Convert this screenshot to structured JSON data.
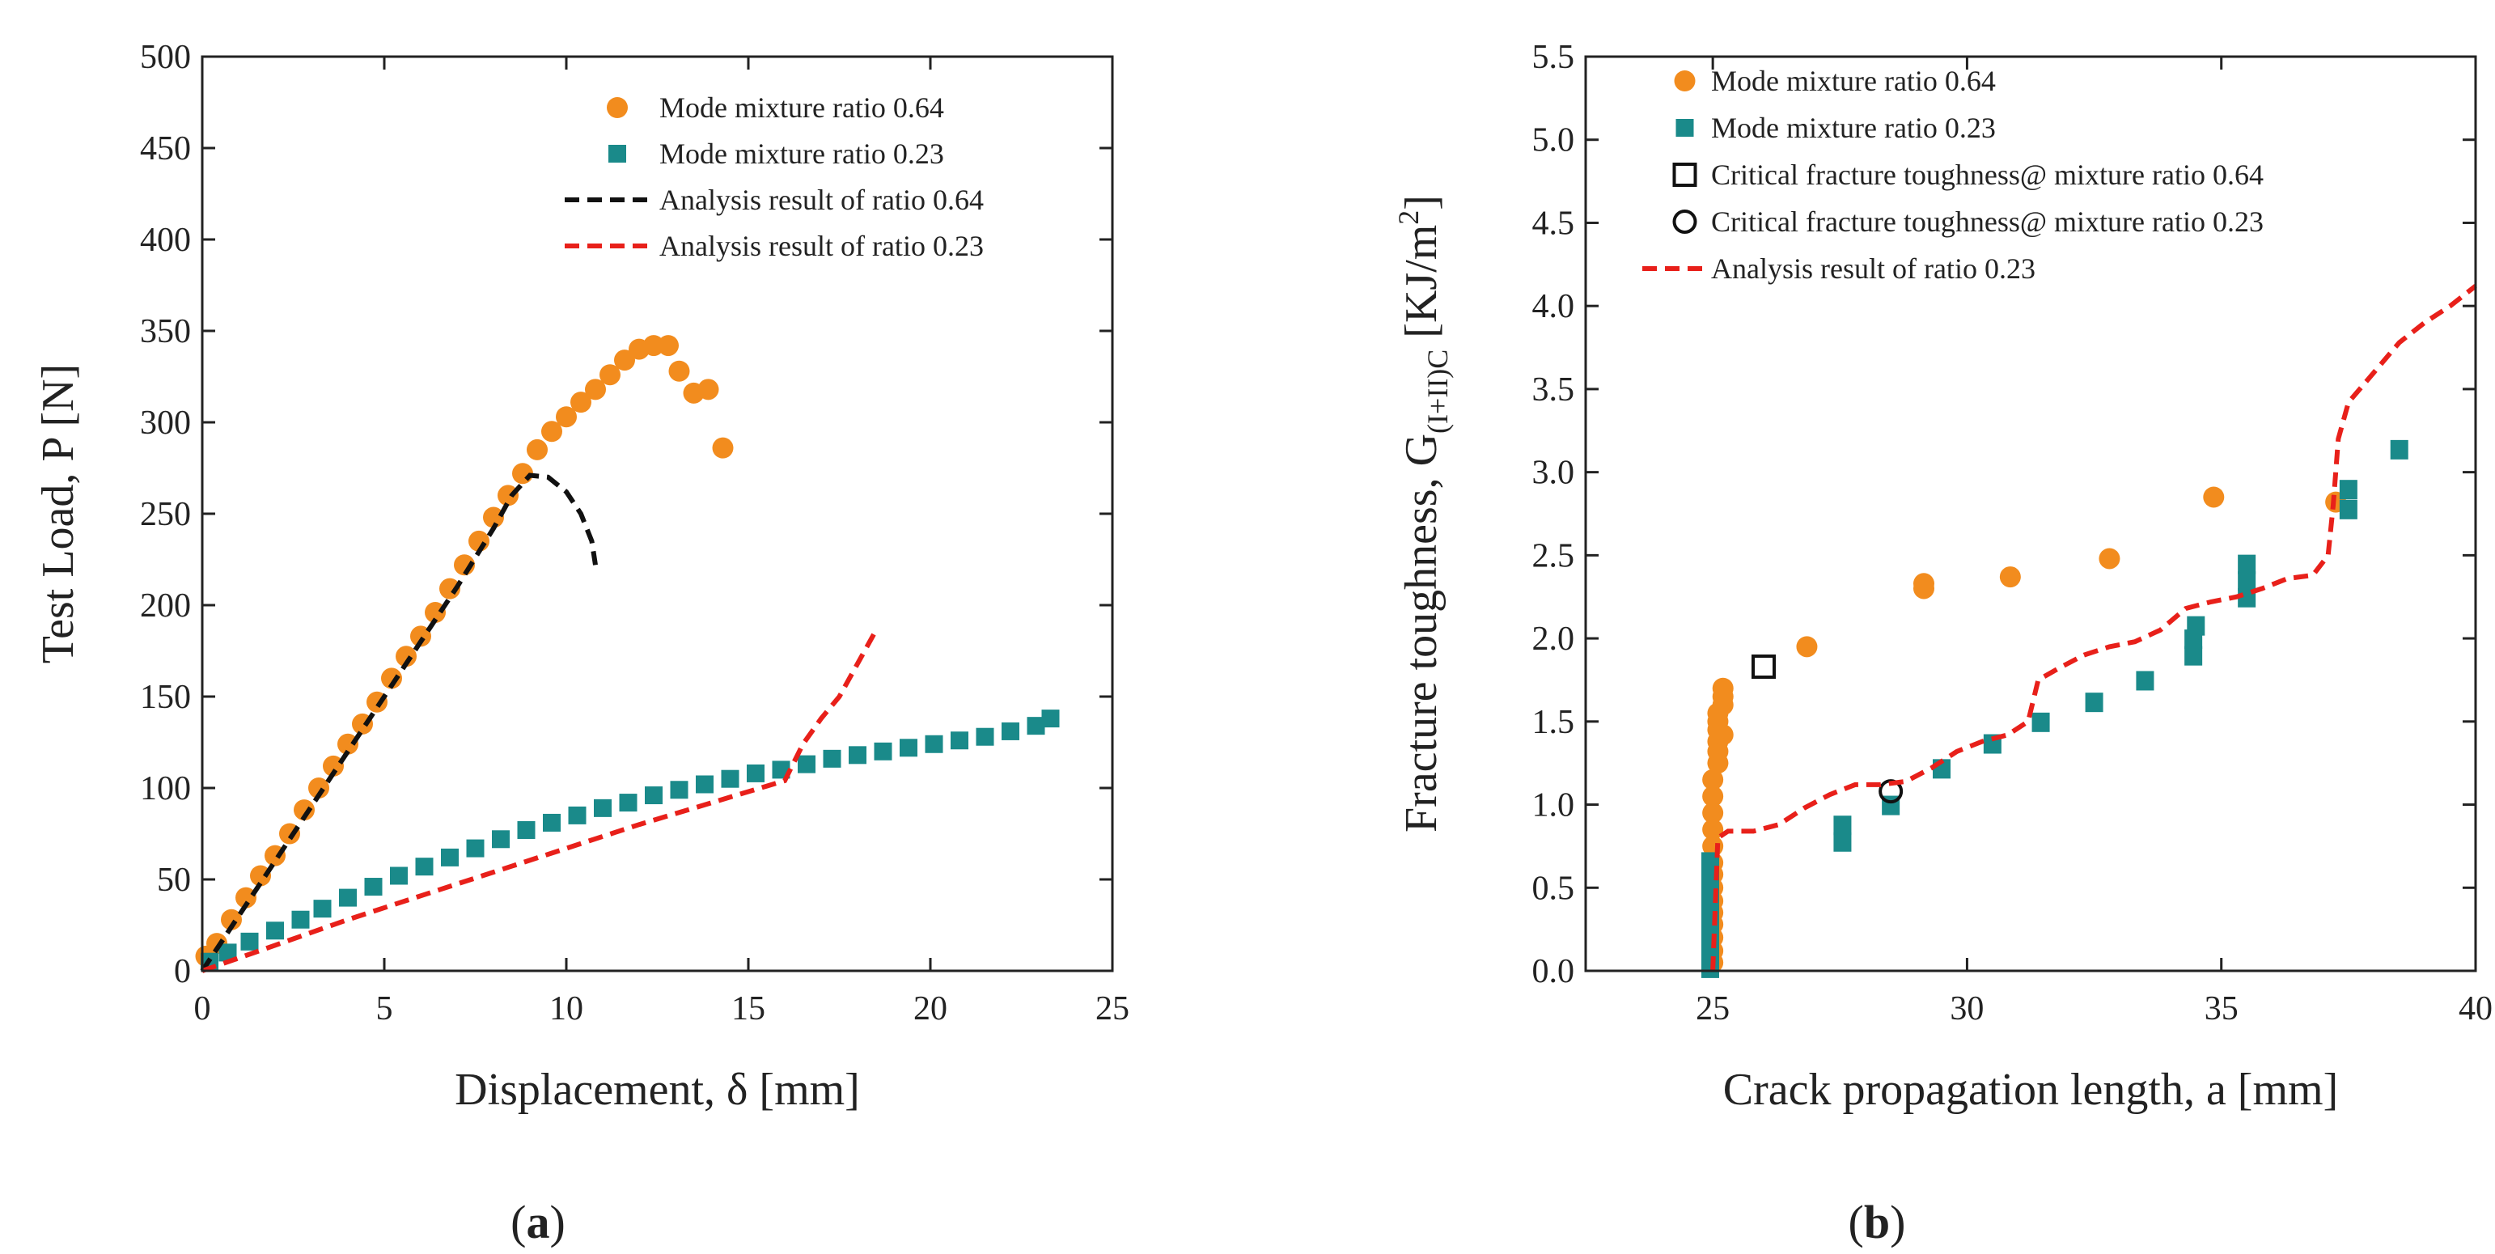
{
  "figure": {
    "panel_a_label": [
      "(",
      "a",
      ")"
    ],
    "panel_b_label": [
      "(",
      "b",
      ")"
    ]
  },
  "colors": {
    "orange": "#F28C1E",
    "teal": "#1A8A8A",
    "black": "#111111",
    "red": "#E8201A"
  },
  "chart_data": [
    {
      "id": "a",
      "type": "scatter",
      "title": "",
      "xlabel": "Displacement, δ [mm]",
      "ylabel": "Test Load, P [N]",
      "xlim": [
        0,
        25
      ],
      "ylim": [
        0,
        500
      ],
      "xticks": [
        0,
        5,
        10,
        15,
        20,
        25
      ],
      "yticks": [
        0,
        50,
        100,
        150,
        200,
        250,
        300,
        350,
        400,
        450,
        500
      ],
      "legend_position": "top-right",
      "series": [
        {
          "name": "Mode mixture ratio 0.64",
          "marker": "circle",
          "color": "#F28C1E",
          "x": [
            0.1,
            0.4,
            0.8,
            1.2,
            1.6,
            2.0,
            2.4,
            2.8,
            3.2,
            3.6,
            4.0,
            4.4,
            4.8,
            5.2,
            5.6,
            6.0,
            6.4,
            6.8,
            7.2,
            7.6,
            8.0,
            8.4,
            8.8,
            9.2,
            9.6,
            10.0,
            10.4,
            10.8,
            11.2,
            11.6,
            12.0,
            12.4,
            12.8,
            13.1,
            13.5,
            13.9,
            14.3
          ],
          "y": [
            8,
            15,
            28,
            40,
            52,
            63,
            75,
            88,
            100,
            112,
            124,
            135,
            147,
            160,
            172,
            183,
            196,
            209,
            222,
            235,
            248,
            260,
            272,
            285,
            295,
            303,
            311,
            318,
            326,
            334,
            340,
            342,
            342,
            328,
            316,
            318,
            286
          ]
        },
        {
          "name": "Mode mixture ratio 0.23",
          "marker": "square",
          "color": "#1A8A8A",
          "x": [
            0.2,
            0.7,
            1.3,
            2.0,
            2.7,
            3.3,
            4.0,
            4.7,
            5.4,
            6.1,
            6.8,
            7.5,
            8.2,
            8.9,
            9.6,
            10.3,
            11.0,
            11.7,
            12.4,
            13.1,
            13.8,
            14.5,
            15.2,
            15.9,
            16.6,
            17.3,
            18.0,
            18.7,
            19.4,
            20.1,
            20.8,
            21.5,
            22.2,
            22.9,
            23.3
          ],
          "y": [
            5,
            10,
            16,
            22,
            28,
            34,
            40,
            46,
            52,
            57,
            62,
            67,
            72,
            77,
            81,
            85,
            89,
            92,
            96,
            99,
            102,
            105,
            108,
            110,
            113,
            116,
            118,
            120,
            122,
            124,
            126,
            128,
            131,
            134,
            138
          ]
        },
        {
          "name": "Analysis result of  ratio 0.64",
          "marker": "dashed-line",
          "color": "#111111",
          "x": [
            0,
            1,
            2,
            3,
            4,
            5,
            6,
            7,
            8,
            8.5,
            9.0,
            9.5,
            10.0,
            10.4,
            10.7,
            10.8
          ],
          "y": [
            0,
            30,
            60,
            90,
            120,
            150,
            180,
            210,
            242,
            260,
            271,
            270,
            262,
            250,
            235,
            222
          ]
        },
        {
          "name": "Analysis result of  ratio 0.23",
          "marker": "dashed-line",
          "color": "#E8201A",
          "x": [
            0,
            2,
            4,
            6,
            8,
            10,
            12,
            14,
            15.5,
            16.0,
            16.2,
            16.5,
            17.0,
            17.5,
            18.0,
            18.5
          ],
          "y": [
            0,
            14,
            28,
            41,
            54,
            67,
            80,
            92,
            101,
            104,
            112,
            124,
            138,
            150,
            168,
            186
          ]
        }
      ]
    },
    {
      "id": "b",
      "type": "scatter",
      "title": "",
      "xlabel": "Crack propagation length, a [mm]",
      "ylabel_main": "Fracture toughness, G",
      "ylabel_sub": "(I+II)C",
      "ylabel_unit": " [KJ/m",
      "ylabel_sup": "2",
      "ylabel_close": "]",
      "xlim": [
        22.5,
        40
      ],
      "ylim": [
        0.0,
        5.5
      ],
      "xticks": [
        25,
        30,
        35,
        40
      ],
      "yticks": [
        0.0,
        0.5,
        1.0,
        1.5,
        2.0,
        2.5,
        3.0,
        3.5,
        4.0,
        4.5,
        5.0,
        5.5
      ],
      "legend_position": "top-left",
      "series": [
        {
          "name": " Mode mixture ratio 0.64",
          "marker": "circle",
          "color": "#F28C1E",
          "x": [
            25.0,
            25.0,
            25.0,
            25.0,
            25.0,
            25.0,
            25.0,
            25.0,
            25.0,
            25.0,
            25.0,
            25.0,
            25.0,
            25.0,
            25.1,
            25.1,
            25.1,
            25.1,
            25.1,
            25.1,
            25.2,
            25.2,
            25.2,
            25.2,
            26.85,
            29.15,
            29.15,
            30.85,
            32.8,
            34.85,
            37.25
          ],
          "y": [
            0.05,
            0.12,
            0.2,
            0.28,
            0.35,
            0.42,
            0.5,
            0.58,
            0.65,
            0.75,
            0.85,
            0.95,
            1.05,
            1.15,
            1.25,
            1.32,
            1.38,
            1.45,
            1.5,
            1.55,
            1.6,
            1.65,
            1.42,
            1.7,
            1.95,
            2.3,
            2.33,
            2.37,
            2.48,
            2.85,
            2.82
          ]
        },
        {
          "name": " Mode mixture ratio 0.23",
          "marker": "square",
          "color": "#1A8A8A",
          "x": [
            24.95,
            24.95,
            24.95,
            24.95,
            24.95,
            24.95,
            24.95,
            24.95,
            27.55,
            27.55,
            28.5,
            29.5,
            30.5,
            31.45,
            32.5,
            33.5,
            34.45,
            34.45,
            34.5,
            35.5,
            35.5,
            35.5,
            37.5,
            37.5,
            38.5
          ],
          "y": [
            0.02,
            0.1,
            0.2,
            0.3,
            0.4,
            0.5,
            0.6,
            0.66,
            0.78,
            0.88,
            1.0,
            1.22,
            1.37,
            1.5,
            1.62,
            1.75,
            1.9,
            2.0,
            2.08,
            2.25,
            2.35,
            2.45,
            2.78,
            2.9,
            3.14
          ]
        },
        {
          "name": "Critical fracture toughness@ mixture ratio 0.64",
          "marker": "open-square",
          "color": "#111111",
          "x": [
            26.0
          ],
          "y": [
            1.83
          ]
        },
        {
          "name": "Critical fracture toughness@ mixture ratio 0.23",
          "marker": "open-circle",
          "color": "#111111",
          "x": [
            28.5
          ],
          "y": [
            1.08
          ]
        },
        {
          "name": "Analysis result of ratio 0.23",
          "marker": "dashed-line",
          "color": "#E8201A",
          "x": [
            25.0,
            25.1,
            25.3,
            25.8,
            26.3,
            26.8,
            27.3,
            27.8,
            28.3,
            28.8,
            29.3,
            29.8,
            30.3,
            30.8,
            31.2,
            31.4,
            31.8,
            32.3,
            32.8,
            33.3,
            33.8,
            34.3,
            34.8,
            35.3,
            35.8,
            36.3,
            36.8,
            37.1,
            37.2,
            37.3,
            37.5,
            38.0,
            38.5,
            39.0,
            39.5,
            40.0
          ],
          "y": [
            0.0,
            0.8,
            0.84,
            0.84,
            0.88,
            0.98,
            1.06,
            1.12,
            1.12,
            1.14,
            1.22,
            1.32,
            1.38,
            1.42,
            1.5,
            1.75,
            1.82,
            1.9,
            1.95,
            1.98,
            2.05,
            2.18,
            2.22,
            2.25,
            2.3,
            2.36,
            2.38,
            2.5,
            2.8,
            3.2,
            3.42,
            3.6,
            3.78,
            3.9,
            4.0,
            4.12
          ]
        }
      ]
    }
  ]
}
